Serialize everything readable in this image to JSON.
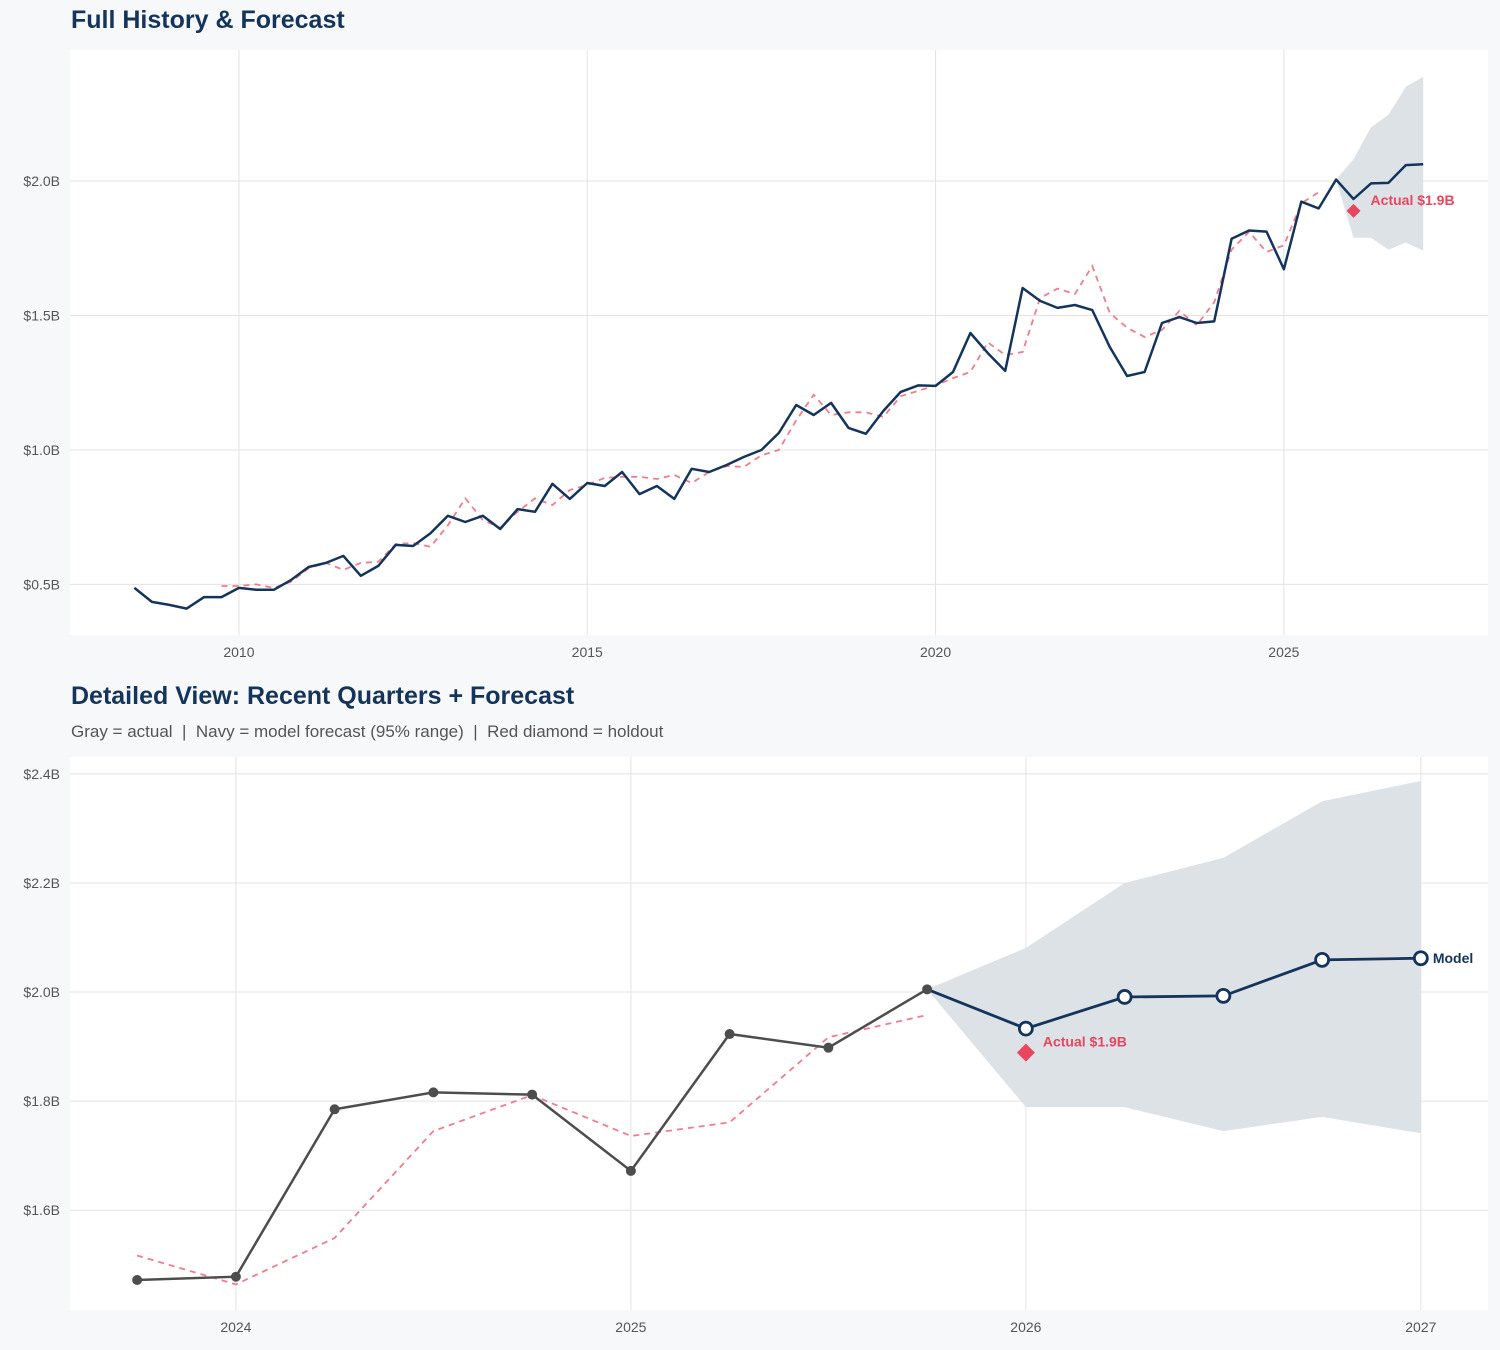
{
  "colors": {
    "navy": "#14345c",
    "red": "#e8465f",
    "fitted": "#ef7d8d",
    "gray": "#4d4d4d",
    "band": "#dbe0e6",
    "grid": "#e3e3e3"
  },
  "chart_data": [
    {
      "type": "line",
      "title": "Full History & Forecast",
      "xlim": [
        2007.575,
        2027.93
      ],
      "ylim": [
        0.312,
        2.487
      ],
      "grid": true,
      "x_ticks": [
        2010,
        2015,
        2020,
        2025
      ],
      "x_tick_labels": [
        "2010",
        "2015",
        "2020",
        "2025"
      ],
      "y_ticks": [
        0.5,
        1.0,
        1.5,
        2.0
      ],
      "y_tick_labels": [
        "$0.5B",
        "$1.0B",
        "$1.5B",
        "$2.0B"
      ],
      "actual": {
        "x_start": 2008.5,
        "x_step": 0.25,
        "values": [
          0.487,
          0.435,
          0.424,
          0.41,
          0.453,
          0.453,
          0.487,
          0.48,
          0.48,
          0.517,
          0.565,
          0.58,
          0.606,
          0.532,
          0.569,
          0.647,
          0.643,
          0.69,
          0.755,
          0.732,
          0.755,
          0.706,
          0.78,
          0.77,
          0.874,
          0.818,
          0.877,
          0.866,
          0.918,
          0.836,
          0.866,
          0.818,
          0.93,
          0.918,
          0.944,
          0.974,
          1.0,
          1.063,
          1.167,
          1.13,
          1.175,
          1.082,
          1.06,
          1.145,
          1.216,
          1.24,
          1.238,
          1.29,
          1.435,
          1.36,
          1.294,
          1.602,
          1.554,
          1.528,
          1.539,
          1.52,
          1.383,
          1.275,
          1.29,
          1.472,
          1.494,
          1.472,
          1.478,
          1.785,
          1.816,
          1.812,
          1.672,
          1.923,
          1.898,
          2.005
        ]
      },
      "fitted": {
        "x_start": 2009.75,
        "x_step": 0.25,
        "values": [
          0.494,
          0.494,
          0.5,
          0.487,
          0.51,
          0.56,
          0.58,
          0.554,
          0.58,
          0.584,
          0.65,
          0.654,
          0.64,
          0.72,
          0.82,
          0.74,
          0.71,
          0.77,
          0.82,
          0.795,
          0.851,
          0.87,
          0.896,
          0.9,
          0.9,
          0.892,
          0.907,
          0.877,
          0.918,
          0.94,
          0.937,
          0.98,
          1.0,
          1.11,
          1.205,
          1.13,
          1.14,
          1.14,
          1.123,
          1.2,
          1.22,
          1.24,
          1.267,
          1.29,
          1.4,
          1.353,
          1.364,
          1.565,
          1.6,
          1.58,
          1.684,
          1.51,
          1.454,
          1.42,
          1.446,
          1.517,
          1.464,
          1.549,
          1.745,
          1.811,
          1.736,
          1.761,
          1.917,
          1.958
        ]
      },
      "forecast": {
        "x": [
          2025.75,
          2026.0,
          2026.25,
          2026.5,
          2026.75,
          2027.0
        ],
        "values": [
          2.005,
          1.933,
          1.991,
          1.993,
          2.059,
          2.062
        ]
      },
      "band": {
        "x": [
          2025.75,
          2026.0,
          2026.25,
          2026.5,
          2026.75,
          2027.0
        ],
        "upper": [
          2.005,
          2.081,
          2.2,
          2.246,
          2.35,
          2.387
        ],
        "lower": [
          2.005,
          1.789,
          1.789,
          1.745,
          1.771,
          1.741
        ]
      },
      "holdout": {
        "x": 2026.0,
        "value": 1.889,
        "label": "Actual $1.9B"
      }
    },
    {
      "type": "line",
      "title": "Detailed View: Recent Quarters + Forecast",
      "subtitle": "Gray = actual  |  Navy = model forecast (95% range)  |  Red diamond = holdout",
      "xlim": [
        2023.58,
        2027.17
      ],
      "ylim": [
        1.417,
        2.431
      ],
      "grid": true,
      "x_ticks": [
        2024,
        2025,
        2026,
        2027
      ],
      "x_tick_labels": [
        "2024",
        "2025",
        "2026",
        "2027"
      ],
      "y_ticks": [
        1.6,
        1.8,
        2.0,
        2.2,
        2.4
      ],
      "y_tick_labels": [
        "$1.6B",
        "$1.8B",
        "$2.0B",
        "$2.2B",
        "$2.4B"
      ],
      "actual": {
        "x_start": 2023.75,
        "x_step": 0.25,
        "values": [
          1.472,
          1.478,
          1.785,
          1.816,
          1.812,
          1.672,
          1.923,
          1.898,
          2.005
        ]
      },
      "fitted": {
        "x_start": 2023.75,
        "x_step": 0.25,
        "values": [
          1.517,
          1.464,
          1.549,
          1.745,
          1.811,
          1.736,
          1.761,
          1.917,
          1.958
        ]
      },
      "forecast": {
        "x": [
          2025.75,
          2026.0,
          2026.25,
          2026.5,
          2026.75,
          2027.0
        ],
        "values": [
          2.005,
          1.933,
          1.991,
          1.993,
          2.059,
          2.062
        ],
        "label": "Model"
      },
      "band": {
        "x": [
          2025.75,
          2026.0,
          2026.25,
          2026.5,
          2026.75,
          2027.0
        ],
        "upper": [
          2.005,
          2.081,
          2.2,
          2.246,
          2.35,
          2.387
        ],
        "lower": [
          2.005,
          1.789,
          1.789,
          1.745,
          1.771,
          1.741
        ]
      },
      "holdout": {
        "x": 2026.0,
        "value": 1.889,
        "label": "Actual $1.9B"
      }
    }
  ]
}
